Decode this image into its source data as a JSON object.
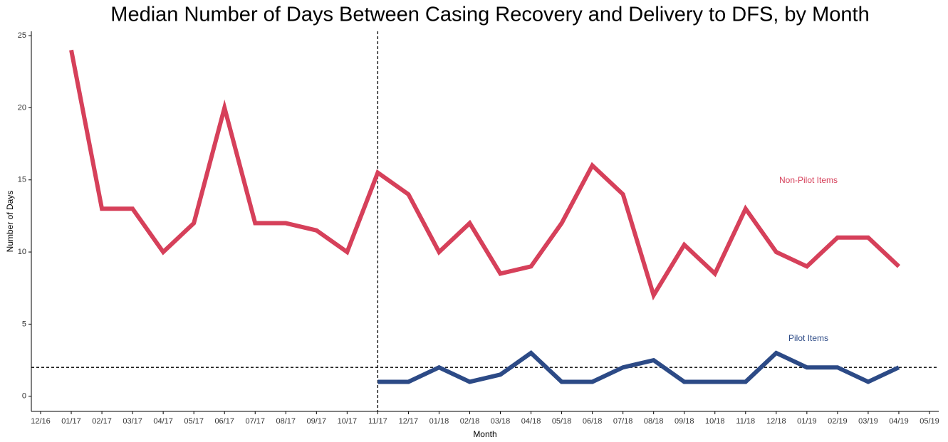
{
  "chart_data": {
    "type": "line",
    "title": "Median Number of Days Between Casing Recovery and Delivery to DFS, by Month",
    "x_label": "Month",
    "y_label": "Number of Days",
    "categories": [
      "12/16",
      "01/17",
      "02/17",
      "03/17",
      "04/17",
      "05/17",
      "06/17",
      "07/17",
      "08/17",
      "09/17",
      "10/17",
      "11/17",
      "12/17",
      "01/18",
      "02/18",
      "03/18",
      "04/18",
      "05/18",
      "06/18",
      "07/18",
      "08/18",
      "09/18",
      "10/18",
      "11/18",
      "12/18",
      "01/19",
      "02/19",
      "03/19",
      "04/19",
      "05/19"
    ],
    "series": [
      {
        "name": "Non-Pilot Items",
        "color": "#d6405a",
        "values": [
          null,
          24,
          13,
          13,
          10,
          12,
          20,
          12,
          12,
          11.5,
          10,
          15.5,
          14,
          10,
          12,
          8.5,
          9,
          12,
          16,
          14,
          7,
          10.5,
          8.5,
          13,
          10,
          9,
          11,
          11,
          9,
          null
        ]
      },
      {
        "name": "Pilot Items",
        "color": "#2c4a86",
        "values": [
          null,
          null,
          null,
          null,
          null,
          null,
          null,
          null,
          null,
          null,
          null,
          1,
          1,
          2,
          1,
          1.5,
          3,
          1,
          1,
          2,
          2.5,
          1,
          1,
          1,
          3,
          2,
          2,
          1,
          2,
          null
        ]
      }
    ],
    "ylim": [
      -1.05,
      25.3
    ],
    "yticks": [
      0,
      5,
      10,
      15,
      20,
      25
    ],
    "vline_x": "11/17",
    "hline_y": 2,
    "grid": false
  }
}
